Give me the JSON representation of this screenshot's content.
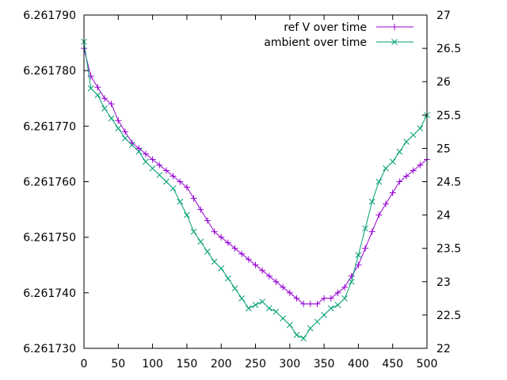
{
  "chart_data": {
    "type": "line",
    "title": "",
    "xlabel": "",
    "ylabel": "",
    "y2label": "",
    "grid": false,
    "legend_position": "top-right",
    "xlim": [
      0,
      500
    ],
    "ylim": [
      6.26173,
      6.26179
    ],
    "y2lim": [
      22,
      27
    ],
    "x_ticks": [
      "0",
      "50",
      "100",
      "150",
      "200",
      "250",
      "300",
      "350",
      "400",
      "450",
      "500"
    ],
    "y_ticks": [
      "6.261730",
      "6.261740",
      "6.261750",
      "6.261760",
      "6.261770",
      "6.261780",
      "6.261790"
    ],
    "y2_ticks": [
      "22",
      "22.5",
      "23",
      "23.5",
      "24",
      "24.5",
      "25",
      "25.5",
      "26",
      "26.5",
      "27"
    ],
    "series": [
      {
        "name": "ref V over time",
        "axis": "y1",
        "marker": "plus",
        "color": "#9400d3",
        "x": [
          0,
          10,
          20,
          30,
          40,
          50,
          60,
          70,
          80,
          90,
          100,
          110,
          120,
          130,
          140,
          150,
          160,
          170,
          180,
          190,
          200,
          210,
          220,
          230,
          240,
          250,
          260,
          270,
          280,
          290,
          300,
          310,
          320,
          330,
          340,
          350,
          360,
          370,
          380,
          390,
          400,
          410,
          420,
          430,
          440,
          450,
          460,
          470,
          480,
          490,
          500
        ],
        "y": [
          6.261784,
          6.261779,
          6.261777,
          6.261775,
          6.261774,
          6.261771,
          6.261769,
          6.261767,
          6.261766,
          6.261765,
          6.261764,
          6.261763,
          6.261762,
          6.261761,
          6.26176,
          6.261759,
          6.261757,
          6.261755,
          6.261753,
          6.261751,
          6.26175,
          6.261749,
          6.261748,
          6.261747,
          6.261746,
          6.261745,
          6.261744,
          6.261743,
          6.261742,
          6.261741,
          6.26174,
          6.261739,
          6.261738,
          6.261738,
          6.261738,
          6.261739,
          6.261739,
          6.26174,
          6.261741,
          6.261743,
          6.261745,
          6.261748,
          6.261751,
          6.261754,
          6.261756,
          6.261758,
          6.26176,
          6.261761,
          6.261762,
          6.261763,
          6.261764
        ]
      },
      {
        "name": "ambient over time",
        "axis": "y2",
        "marker": "x",
        "color": "#009e73",
        "x": [
          0,
          10,
          20,
          30,
          40,
          50,
          60,
          70,
          80,
          90,
          100,
          110,
          120,
          130,
          140,
          150,
          160,
          170,
          180,
          190,
          200,
          210,
          220,
          230,
          240,
          250,
          260,
          270,
          280,
          290,
          300,
          310,
          320,
          330,
          340,
          350,
          360,
          370,
          380,
          390,
          400,
          410,
          420,
          430,
          440,
          450,
          460,
          470,
          480,
          490,
          500
        ],
        "y": [
          26.6,
          25.9,
          25.8,
          25.6,
          25.45,
          25.3,
          25.15,
          25.05,
          24.95,
          24.8,
          24.7,
          24.6,
          24.5,
          24.4,
          24.2,
          24.0,
          23.75,
          23.6,
          23.45,
          23.3,
          23.2,
          23.05,
          22.9,
          22.75,
          22.6,
          22.65,
          22.7,
          22.6,
          22.55,
          22.45,
          22.35,
          22.2,
          22.15,
          22.3,
          22.4,
          22.5,
          22.6,
          22.65,
          22.75,
          23.0,
          23.4,
          23.8,
          24.2,
          24.5,
          24.7,
          24.8,
          24.95,
          25.1,
          25.2,
          25.3,
          25.5
        ]
      }
    ]
  }
}
